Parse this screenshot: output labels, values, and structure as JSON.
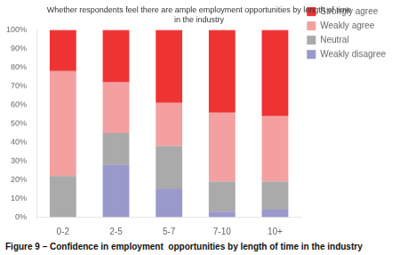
{
  "chart_data": {
    "type": "bar",
    "title": "Whether respondents feel there are ample employment opportunities by length of time\nin the industry",
    "annotations": [
      "Figure 9 – Confidence in employment  opportunities by length of time in the industry"
    ],
    "categories": [
      "0-2",
      "2-5",
      "5-7",
      "7-10",
      "10+"
    ],
    "series": [
      {
        "name": "Weakly disagree",
        "color": "#9999cc",
        "values": [
          0,
          28,
          15,
          3,
          4
        ]
      },
      {
        "name": "Neutral",
        "color": "#aaaaaa",
        "values": [
          22,
          17,
          23,
          16,
          15
        ]
      },
      {
        "name": "Weakly agree",
        "color": "#f4a0a0",
        "values": [
          56,
          27,
          23,
          37,
          35
        ]
      },
      {
        "name": "Strongly agree",
        "color": "#ee3333",
        "values": [
          22,
          28,
          39,
          44,
          46
        ]
      }
    ],
    "stacked": true,
    "ylim": [
      0,
      100
    ],
    "yticks": [
      {
        "value": 0,
        "label": "0%"
      },
      {
        "value": 10,
        "label": "10%"
      },
      {
        "value": 20,
        "label": "20%"
      },
      {
        "value": 30,
        "label": "30%"
      },
      {
        "value": 40,
        "label": "40%"
      },
      {
        "value": 50,
        "label": "50%"
      },
      {
        "value": 60,
        "label": "60%"
      },
      {
        "value": 70,
        "label": "70%"
      },
      {
        "value": 80,
        "label": "80%"
      },
      {
        "value": 90,
        "label": "90%"
      },
      {
        "value": 100,
        "label": "100%"
      }
    ],
    "grid": false,
    "legend": "right"
  }
}
